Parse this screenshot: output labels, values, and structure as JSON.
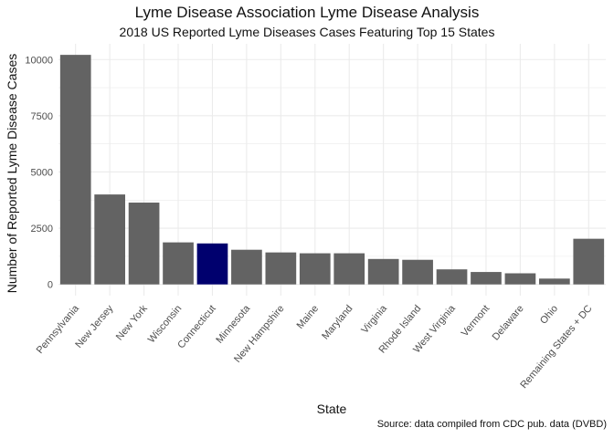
{
  "chart_data": {
    "type": "bar",
    "title": "Lyme Disease Association Lyme Disease Analysis",
    "subtitle": "2018 US Reported Lyme Diseases Cases Featuring Top 15 States",
    "caption": "Source: data compiled from CDC pub. data (DVBD)",
    "xlabel": "State",
    "ylabel": "Number of Reported Lyme Disease Cases",
    "categories": [
      "Pennsylvania",
      "New Jersey",
      "New York",
      "Wisconsin",
      "Connecticut",
      "Minnesota",
      "New Hampshire",
      "Maine",
      "Maryland",
      "Virginia",
      "Rhode Island",
      "West Virginia",
      "Vermont",
      "Delaware",
      "Ohio",
      "Remaining States + DC"
    ],
    "values": [
      10208,
      4000,
      3638,
      1869,
      1822,
      1541,
      1422,
      1384,
      1384,
      1131,
      1094,
      669,
      552,
      494,
      259,
      2030
    ],
    "highlight": "Connecticut",
    "yticks": [
      0,
      2500,
      5000,
      7500,
      10000
    ],
    "ylim": [
      -500,
      10700
    ],
    "grid": true,
    "colors": {
      "bar": "#636363",
      "highlight": "#00006e",
      "grid": "#ebebeb"
    }
  }
}
